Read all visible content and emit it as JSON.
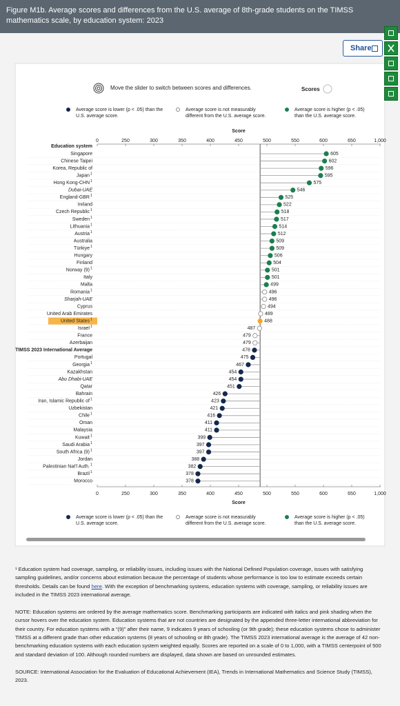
{
  "header": {
    "title": "Figure M1b. Average scores and differences from the U.S. average of 8th-grade students on the TIMSS mathematics scale, by education system: 2023"
  },
  "controls": {
    "share": "Share",
    "instruction": "Move the slider to switch between scores and differences.",
    "toggle_label": "Scores"
  },
  "chart_data": {
    "type": "dot",
    "x_label": "Score",
    "y_label": "Education system",
    "xticks": [
      0,
      250,
      300,
      350,
      400,
      450,
      500,
      550,
      600,
      650,
      {
        "value": 1000,
        "label": "1,000"
      }
    ],
    "legend": [
      {
        "label": "Average score is lower (p < .05) than the U.S. average score.",
        "color": "#15294d"
      },
      {
        "label": "Average score is not measurably different from the U.S. average score.",
        "color": "#ffffff"
      },
      {
        "label": "Average score is higher (p < .05) than the U.S. average score.",
        "color": "#1b7f4f"
      }
    ],
    "categories": [
      "Singapore",
      "Chinese Taipei",
      "Korea, Republic of",
      "Japan",
      "Hong Kong-CHN",
      "Dubai-UAE",
      "England-GBR",
      "Ireland",
      "Czech Republic",
      "Sweden",
      "Lithuania",
      "Austria",
      "Australia",
      "Türkiye",
      "Hungary",
      "Finland",
      "Norway (9)",
      "Italy",
      "Malta",
      "Romania",
      "Sharjah-UAE",
      "Cyprus",
      "United Arab Emirates",
      "United States",
      "Israel",
      "France",
      "Azerbaijan",
      "TIMSS 2023 International Average",
      "Portugal",
      "Georgia",
      "Kazakhstan",
      "Abu Dhabi-UAE",
      "Qatar",
      "Bahrain",
      "Iran, Islamic Republic of",
      "Uzbekistan",
      "Chile",
      "Oman",
      "Malaysia",
      "Kuwait",
      "Saudi Arabia",
      "South Africa (9)",
      "Jordan",
      "Palestinian Nat'l Auth.",
      "Brazil",
      "Morocco"
    ],
    "category_footnotes": [
      null,
      null,
      null,
      "1",
      "1",
      null,
      "1",
      null,
      "1",
      "1",
      "1",
      "1",
      null,
      "1",
      null,
      null,
      "1",
      null,
      null,
      "1",
      null,
      null,
      null,
      "1",
      "1",
      null,
      null,
      null,
      null,
      "1",
      null,
      null,
      null,
      null,
      "1",
      null,
      "1",
      null,
      null,
      "1",
      "1",
      "1",
      null,
      "1",
      "1",
      null
    ],
    "category_styles": [
      null,
      null,
      null,
      null,
      null,
      "italic",
      null,
      null,
      null,
      null,
      null,
      null,
      null,
      null,
      null,
      null,
      null,
      null,
      null,
      null,
      "italic",
      null,
      null,
      "highlight",
      null,
      null,
      null,
      "bold",
      null,
      null,
      null,
      "italic",
      null,
      null,
      null,
      null,
      null,
      null,
      null,
      null,
      null,
      null,
      null,
      null,
      null,
      null
    ],
    "values": [
      605,
      602,
      596,
      595,
      575,
      546,
      525,
      522,
      518,
      517,
      514,
      512,
      509,
      509,
      506,
      504,
      501,
      501,
      499,
      496,
      496,
      494,
      489,
      488,
      487,
      479,
      479,
      478,
      475,
      467,
      454,
      454,
      451,
      426,
      423,
      421,
      416,
      411,
      411,
      399,
      397,
      397,
      388,
      382,
      378,
      378
    ],
    "point_colors": [
      "#1b7f4f",
      "#1b7f4f",
      "#1b7f4f",
      "#1b7f4f",
      "#1b7f4f",
      "#1b7f4f",
      "#1b7f4f",
      "#1b7f4f",
      "#1b7f4f",
      "#1b7f4f",
      "#1b7f4f",
      "#1b7f4f",
      "#1b7f4f",
      "#1b7f4f",
      "#1b7f4f",
      "#1b7f4f",
      "#1b7f4f",
      "#1b7f4f",
      "#1b7f4f",
      "#ffffff",
      "#ffffff",
      "#ffffff",
      "#ffffff",
      "#f5a623",
      "#ffffff",
      "#ffffff",
      "#ffffff",
      "#15294d",
      "#15294d",
      "#15294d",
      "#15294d",
      "#15294d",
      "#15294d",
      "#15294d",
      "#15294d",
      "#15294d",
      "#15294d",
      "#15294d",
      "#15294d",
      "#15294d",
      "#15294d",
      "#15294d",
      "#15294d",
      "#15294d",
      "#15294d",
      "#15294d"
    ]
  },
  "notes": {
    "footnote": {
      "before": "¹ Education system had coverage, sampling, or reliability issues, including issues with the National Defined Population coverage, issues with satisfying sampling guidelines, and/or concerns about estimation because the percentage of students whose performance is too low to estimate exceeds certain thresholds. Details can be found ",
      "link": "here",
      "after": ". With the exception of benchmarking systems, education systems with coverage, sampling, or reliability issues are included in the TIMSS 2023 international average."
    },
    "note": "NOTE: Education systems are ordered by the average mathematics score. Benchmarking participants are indicated with italics and pink shading when the cursor hovers over the education system. Education systems that are not countries are designated by the appended three-letter international abbreviation for their country. For education systems with a “(9)” after their name, 9 indicates 9 years of schooling (or 9th grade); these education systems chose to administer TIMSS at a different grade than other education systems (8 years of schooling or 8th grade). The TIMSS 2023 international average is the average of 42 non-benchmarking education systems with each education system weighted equally. Scores are reported on a scale of 0 to 1,000, with a TIMSS centerpoint of 500 and standard deviation of 100. Although rounded numbers are displayed, data shown are based on unrounded estimates.",
    "source": "SOURCE: International Association for the Evaluation of Educational Achievement (IEA), Trends in International Mathematics and Science Study (TIMSS), 2023."
  }
}
